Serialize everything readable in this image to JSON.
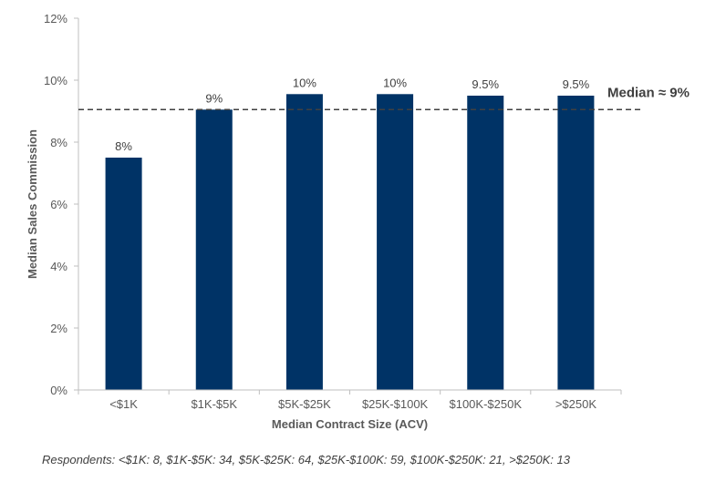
{
  "chart_data": {
    "type": "bar",
    "categories": [
      "<$1K",
      "$1K-$5K",
      "$5K-$25K",
      "$25K-$100K",
      "$100K-$250K",
      ">$250K"
    ],
    "values": [
      7.5,
      9.05,
      9.55,
      9.55,
      9.5,
      9.5
    ],
    "data_labels": [
      "8%",
      "9%",
      "10%",
      "10%",
      "9.5%",
      "9.5%"
    ],
    "xlabel": "Median Contract Size (ACV)",
    "ylabel": "Median Sales Commission",
    "ylim": [
      0,
      12
    ],
    "yticks": [
      "0%",
      "2%",
      "4%",
      "6%",
      "8%",
      "10%",
      "12%"
    ],
    "ytick_values": [
      0,
      2,
      4,
      6,
      8,
      10,
      12
    ],
    "grid": false,
    "bar_color": "#003366",
    "reference_line": {
      "value": 9.05,
      "label": "Median ≈ 9%",
      "style": "dashed"
    }
  },
  "footnote": "Respondents: <$1K: 8, $1K-$5K: 34,  $5K-$25K: 64, $25K-$100K: 59, $100K-$250K: 21, >$250K: 13"
}
